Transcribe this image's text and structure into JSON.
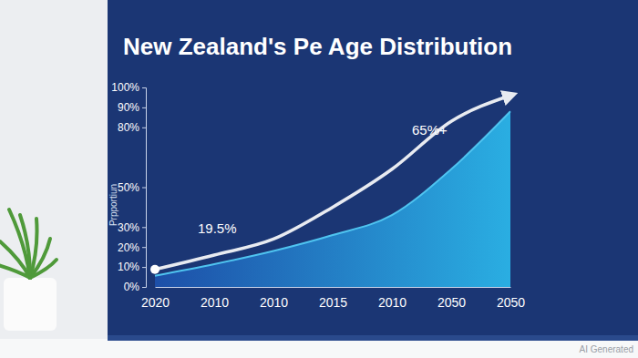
{
  "chart_data": {
    "type": "area",
    "title": "New Zealand's Pe Age Distribution",
    "y_label": "Prpportiun",
    "categories": [
      "2020",
      "2010",
      "2010",
      "2015",
      "2010",
      "2050",
      "2050"
    ],
    "series": [
      {
        "type": "area",
        "color": "#2aaee2",
        "values": [
          5.6,
          11.4,
          18,
          26,
          36,
          59,
          88
        ]
      },
      {
        "type": "line",
        "color": "#ffffff",
        "marker": "arrow",
        "values": [
          8.8,
          16,
          24,
          40,
          59,
          83,
          96
        ]
      }
    ],
    "annotations": [
      "19.5%",
      "65%+"
    ],
    "ylim": [
      0,
      100
    ],
    "yticks": [
      {
        "value": 0,
        "label": "0%"
      },
      {
        "value": 10,
        "label": "10%"
      },
      {
        "value": 20,
        "label": "20%"
      },
      {
        "value": 30,
        "label": "30%"
      },
      {
        "value": 50,
        "label": "50%"
      },
      {
        "value": 80,
        "label": "80%"
      },
      {
        "value": 90,
        "label": "90%"
      },
      {
        "value": 100,
        "label": "100%"
      }
    ],
    "grid": false,
    "watermark": "AI Generated"
  }
}
